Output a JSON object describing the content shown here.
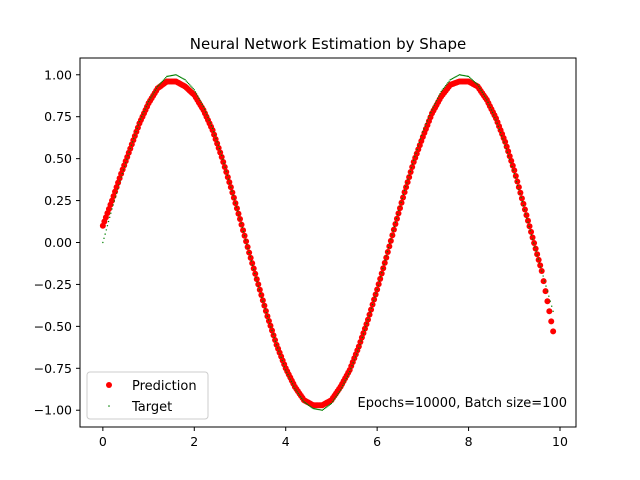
{
  "chart_data": {
    "type": "scatter",
    "title": "Neural Network Estimation by Shape",
    "xlabel": "",
    "ylabel": "",
    "xlim": [
      -0.5,
      10.35
    ],
    "ylim": [
      -1.1,
      1.1
    ],
    "xticks": [
      0,
      2,
      4,
      6,
      8,
      10
    ],
    "xtick_labels": [
      "0",
      "2",
      "4",
      "6",
      "8",
      "10"
    ],
    "yticks": [
      -1.0,
      -0.75,
      -0.5,
      -0.25,
      0.0,
      0.25,
      0.5,
      0.75,
      1.0
    ],
    "ytick_labels": [
      "−1.00",
      "−0.75",
      "−0.50",
      "−0.25",
      "0.00",
      "0.25",
      "0.50",
      "0.75",
      "1.00"
    ],
    "grid": false,
    "legend_position": "lower-left",
    "series": [
      {
        "name": "Prediction",
        "color": "#ff0000",
        "marker": "circle",
        "x": [
          0.0,
          0.2,
          0.4,
          0.6,
          0.8,
          1.0,
          1.2,
          1.4,
          1.6,
          1.8,
          2.0,
          2.2,
          2.4,
          2.6,
          2.8,
          3.0,
          3.2,
          3.4,
          3.6,
          3.8,
          4.0,
          4.2,
          4.4,
          4.6,
          4.8,
          5.0,
          5.2,
          5.4,
          5.6,
          5.8,
          6.0,
          6.2,
          6.4,
          6.6,
          6.8,
          7.0,
          7.2,
          7.4,
          7.6,
          7.8,
          8.0,
          8.2,
          8.4,
          8.6,
          8.8,
          9.0,
          9.2,
          9.4,
          9.6,
          9.85
        ],
        "y": [
          0.1,
          0.25,
          0.41,
          0.56,
          0.71,
          0.83,
          0.92,
          0.96,
          0.96,
          0.93,
          0.88,
          0.79,
          0.67,
          0.51,
          0.33,
          0.14,
          -0.06,
          -0.25,
          -0.44,
          -0.61,
          -0.75,
          -0.86,
          -0.94,
          -0.97,
          -0.97,
          -0.94,
          -0.86,
          -0.76,
          -0.62,
          -0.46,
          -0.28,
          -0.09,
          0.11,
          0.3,
          0.48,
          0.63,
          0.77,
          0.87,
          0.94,
          0.96,
          0.96,
          0.93,
          0.85,
          0.74,
          0.6,
          0.43,
          0.23,
          0.03,
          -0.17,
          -0.53
        ]
      },
      {
        "name": "Target",
        "color": "#008000",
        "marker": "point",
        "x": [
          0.0,
          0.2,
          0.4,
          0.6,
          0.8,
          1.0,
          1.2,
          1.4,
          1.6,
          1.8,
          2.0,
          2.2,
          2.4,
          2.6,
          2.8,
          3.0,
          3.2,
          3.4,
          3.6,
          3.8,
          4.0,
          4.2,
          4.4,
          4.6,
          4.8,
          5.0,
          5.2,
          5.4,
          5.6,
          5.8,
          6.0,
          6.2,
          6.4,
          6.6,
          6.8,
          7.0,
          7.2,
          7.4,
          7.6,
          7.8,
          8.0,
          8.2,
          8.4,
          8.6,
          8.8,
          9.0,
          9.2,
          9.4,
          9.6,
          9.85
        ],
        "y": [
          0.0,
          0.2,
          0.39,
          0.56,
          0.72,
          0.84,
          0.93,
          0.99,
          1.0,
          0.97,
          0.91,
          0.81,
          0.68,
          0.52,
          0.33,
          0.14,
          -0.06,
          -0.26,
          -0.44,
          -0.61,
          -0.76,
          -0.87,
          -0.95,
          -0.99,
          -1.0,
          -0.96,
          -0.88,
          -0.77,
          -0.63,
          -0.46,
          -0.28,
          -0.08,
          0.12,
          0.31,
          0.49,
          0.66,
          0.79,
          0.9,
          0.97,
          1.0,
          0.99,
          0.94,
          0.85,
          0.73,
          0.58,
          0.41,
          0.22,
          0.02,
          -0.17,
          -0.41
        ]
      }
    ],
    "annotations": [
      {
        "text": "Epochs=10000, Batch size=100"
      }
    ]
  }
}
